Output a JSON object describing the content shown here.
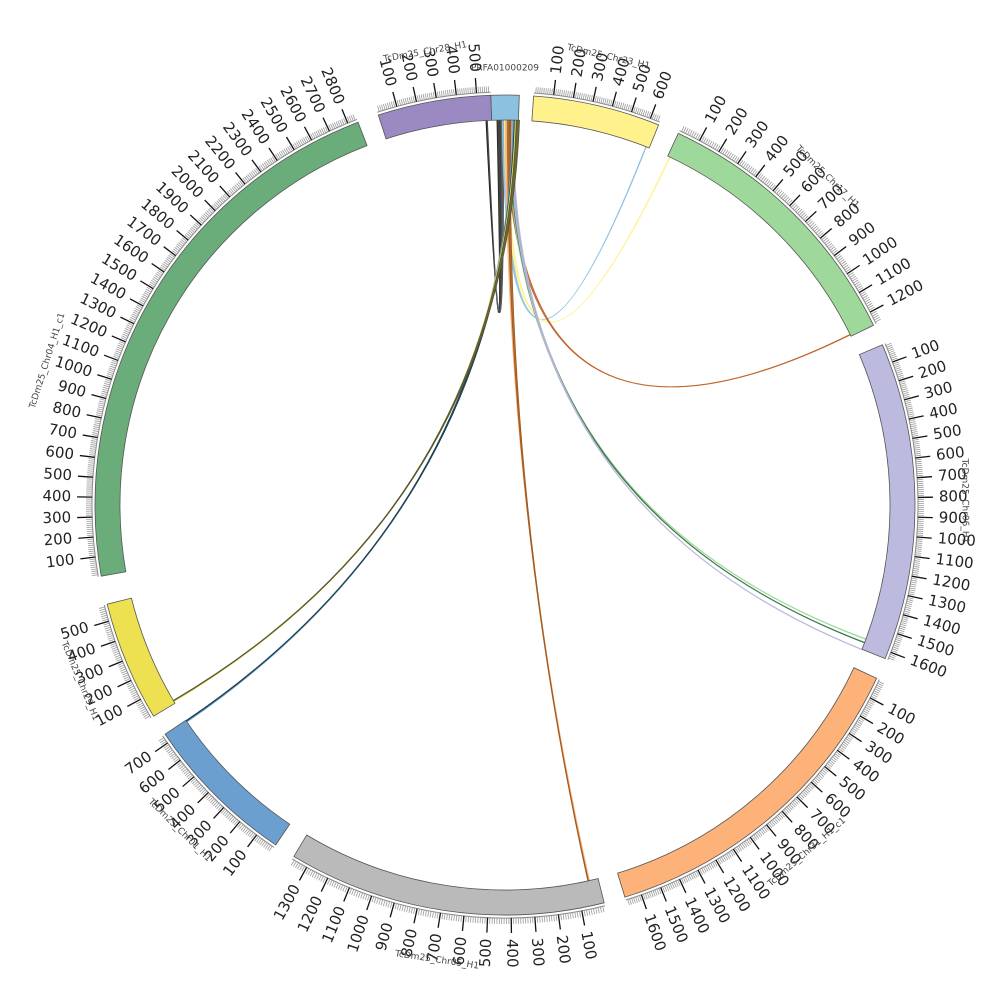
{
  "chart_data": {
    "type": "circos",
    "segments": [
      {
        "id": "PRFA",
        "name": "PRFA01000209",
        "length": 25,
        "color": "#8cc2e0",
        "start_angle": -2.0,
        "end_angle": 2.0,
        "label_offset": 0,
        "ticks": []
      },
      {
        "id": "chr23",
        "name": "TcDm25_Chr23_H1",
        "length": 650,
        "color": "#fff18c",
        "start_angle": 4.0,
        "end_angle": 22.0,
        "label_offset": 0,
        "ticks": [
          100,
          200,
          300,
          400,
          500,
          600
        ]
      },
      {
        "id": "chr17",
        "name": "TcDm25_Chr17_H1",
        "length": 1260,
        "color": "#9fd89b",
        "start_angle": 25.0,
        "end_angle": 64.0,
        "label_offset": 0,
        "ticks": [
          100,
          200,
          300,
          400,
          500,
          600,
          700,
          800,
          900,
          1000,
          1100,
          1200
        ]
      },
      {
        "id": "chr06",
        "name": "TcDm25_Chr06_H1",
        "length": 1640,
        "color": "#bcbadf",
        "start_angle": 67.0,
        "end_angle": 112.0,
        "label_offset": 0,
        "ticks": [
          100,
          200,
          300,
          400,
          500,
          600,
          700,
          800,
          900,
          1000,
          1100,
          1200,
          1300,
          1400,
          1500,
          1600
        ]
      },
      {
        "id": "chr31",
        "name": "TcDm25_Chr31_H1_c1",
        "length": 1680,
        "color": "#fdb27a",
        "start_angle": 115.0,
        "end_angle": 163.0,
        "label_offset": 0,
        "ticks": [
          100,
          200,
          300,
          400,
          500,
          600,
          700,
          800,
          900,
          1000,
          1100,
          1200,
          1300,
          1400,
          1500,
          1600
        ]
      },
      {
        "id": "chr05",
        "name": "TcDm25_Chr05_H1",
        "length": 1370,
        "color": "#bababa",
        "start_angle": 166.0,
        "end_angle": 211.0,
        "label_offset": 0,
        "ticks": [
          100,
          200,
          300,
          400,
          500,
          600,
          700,
          800,
          900,
          1000,
          1100,
          1200,
          1300
        ]
      },
      {
        "id": "chr01",
        "name": "TcDm25_Chr01_H1",
        "length": 740,
        "color": "#6b9fd0",
        "start_angle": 214.0,
        "end_angle": 236.0,
        "label_offset": 0,
        "ticks": [
          100,
          200,
          300,
          400,
          500,
          600,
          700
        ]
      },
      {
        "id": "chr29",
        "name": "TcDm25_Chr29_H1",
        "length": 580,
        "color": "#ede152",
        "start_angle": 239.0,
        "end_angle": 256.0,
        "label_offset": 0,
        "ticks": [
          100,
          200,
          300,
          400,
          500
        ]
      },
      {
        "id": "chr04",
        "name": "TcDm25_Chr04_H1_c1",
        "length": 2850,
        "color": "#6aad7a",
        "start_angle": 260.0,
        "end_angle": 339.0,
        "label_offset": -12,
        "ticks": [
          100,
          200,
          300,
          400,
          500,
          600,
          700,
          800,
          900,
          1000,
          1100,
          1200,
          1300,
          1400,
          1500,
          1600,
          1700,
          1800,
          1900,
          2000,
          2100,
          2200,
          2300,
          2400,
          2500,
          2600,
          2700,
          2800
        ]
      },
      {
        "id": "chr28",
        "name": "TcDm25_Chr28_H1",
        "length": 570,
        "color": "#9b89c2",
        "start_angle": 342.0,
        "end_angle": 358.0,
        "label_offset": 0,
        "ticks": [
          100,
          200,
          300,
          400,
          500
        ]
      }
    ],
    "links": [
      {
        "from": "PRFA",
        "from_pos": 5,
        "to": "chr28",
        "to_pos": 540,
        "color": "#222222"
      },
      {
        "from": "PRFA",
        "from_pos": 8,
        "to": "chr28",
        "to_pos": 545,
        "color": "#444444"
      },
      {
        "from": "PRFA",
        "from_pos": 10,
        "to": "chr23",
        "to_pos": 630,
        "color": "#8cc2e0"
      },
      {
        "from": "PRFA",
        "from_pos": 12,
        "to": "chr17",
        "to_pos": 10,
        "color": "#fff18c"
      },
      {
        "from": "PRFA",
        "from_pos": 14,
        "to": "chr17",
        "to_pos": 1250,
        "color": "#c0632b"
      },
      {
        "from": "PRFA",
        "from_pos": 16,
        "to": "chr06",
        "to_pos": 1580,
        "color": "#9fd89b"
      },
      {
        "from": "PRFA",
        "from_pos": 17,
        "to": "chr06",
        "to_pos": 1600,
        "color": "#3d7a4a"
      },
      {
        "from": "PRFA",
        "from_pos": 18,
        "to": "chr06",
        "to_pos": 1640,
        "color": "#bcbadf"
      },
      {
        "from": "PRFA",
        "from_pos": 13,
        "to": "chr05",
        "to_pos": 40,
        "color": "#fdb27a"
      },
      {
        "from": "PRFA",
        "from_pos": 15,
        "to": "chr05",
        "to_pos": 45,
        "color": "#a05a20"
      },
      {
        "from": "PRFA",
        "from_pos": 20,
        "to": "chr01",
        "to_pos": 730,
        "color": "#6b9fd0"
      },
      {
        "from": "PRFA",
        "from_pos": 21,
        "to": "chr01",
        "to_pos": 735,
        "color": "#1f3f4f"
      },
      {
        "from": "PRFA",
        "from_pos": 22,
        "to": "chr29",
        "to_pos": 10,
        "color": "#ede152"
      },
      {
        "from": "PRFA",
        "from_pos": 23,
        "to": "chr29",
        "to_pos": 14,
        "color": "#555533"
      }
    ]
  }
}
